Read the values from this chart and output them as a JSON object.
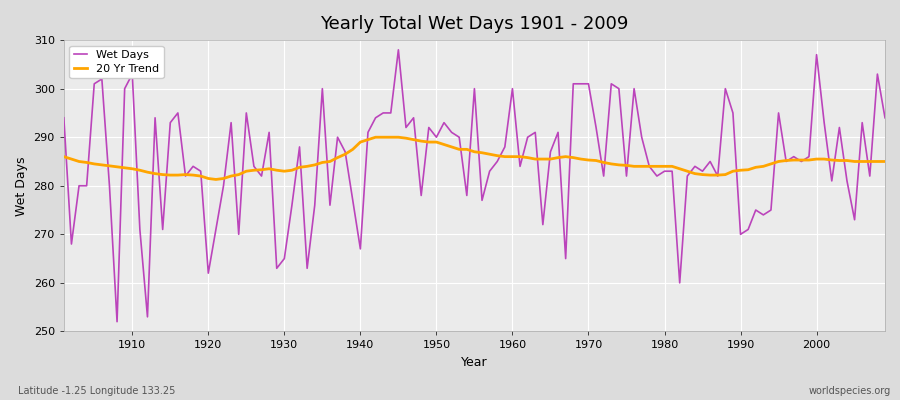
{
  "title": "Yearly Total Wet Days 1901 - 2009",
  "xlabel": "Year",
  "ylabel": "Wet Days",
  "footnote_left": "Latitude -1.25 Longitude 133.25",
  "footnote_right": "worldspecies.org",
  "ylim": [
    250,
    310
  ],
  "xlim": [
    1901,
    2009
  ],
  "yticks": [
    250,
    260,
    270,
    280,
    290,
    300,
    310
  ],
  "xticks": [
    1910,
    1920,
    1930,
    1940,
    1950,
    1960,
    1970,
    1980,
    1990,
    2000
  ],
  "wet_days_color": "#BB44BB",
  "trend_color": "#FFA500",
  "plot_bg_color": "#EBEBEB",
  "fig_bg_color": "#DCDCDC",
  "years": [
    1901,
    1902,
    1903,
    1904,
    1905,
    1906,
    1907,
    1908,
    1909,
    1910,
    1911,
    1912,
    1913,
    1914,
    1915,
    1916,
    1917,
    1918,
    1919,
    1920,
    1921,
    1922,
    1923,
    1924,
    1925,
    1926,
    1927,
    1928,
    1929,
    1930,
    1931,
    1932,
    1933,
    1934,
    1935,
    1936,
    1937,
    1938,
    1939,
    1940,
    1941,
    1942,
    1943,
    1944,
    1945,
    1946,
    1947,
    1948,
    1949,
    1950,
    1951,
    1952,
    1953,
    1954,
    1955,
    1956,
    1957,
    1958,
    1959,
    1960,
    1961,
    1962,
    1963,
    1964,
    1965,
    1966,
    1967,
    1968,
    1969,
    1970,
    1971,
    1972,
    1973,
    1974,
    1975,
    1976,
    1977,
    1978,
    1979,
    1980,
    1981,
    1982,
    1983,
    1984,
    1985,
    1986,
    1987,
    1988,
    1989,
    1990,
    1991,
    1992,
    1993,
    1994,
    1995,
    1996,
    1997,
    1998,
    1999,
    2000,
    2001,
    2002,
    2003,
    2004,
    2005,
    2006,
    2007,
    2008,
    2009
  ],
  "wet_days": [
    294,
    268,
    280,
    280,
    301,
    302,
    280,
    252,
    300,
    303,
    271,
    253,
    294,
    271,
    293,
    295,
    282,
    284,
    283,
    262,
    271,
    280,
    293,
    270,
    295,
    284,
    282,
    291,
    263,
    265,
    276,
    288,
    263,
    276,
    300,
    276,
    290,
    287,
    277,
    267,
    291,
    294,
    295,
    295,
    308,
    292,
    294,
    278,
    292,
    290,
    293,
    291,
    290,
    278,
    300,
    277,
    283,
    285,
    288,
    300,
    284,
    290,
    291,
    272,
    287,
    291,
    265,
    301,
    301,
    301,
    292,
    282,
    301,
    300,
    282,
    300,
    290,
    284,
    282,
    283,
    283,
    260,
    282,
    284,
    283,
    285,
    282,
    300,
    295,
    270,
    271,
    275,
    274,
    275,
    295,
    285,
    286,
    285,
    286,
    307,
    293,
    281,
    292,
    281,
    273,
    293,
    282,
    303,
    294
  ],
  "trend": [
    286.0,
    285.5,
    285.0,
    284.8,
    284.5,
    284.3,
    284.1,
    283.9,
    283.7,
    283.5,
    283.2,
    282.8,
    282.5,
    282.3,
    282.2,
    282.2,
    282.3,
    282.2,
    282.0,
    281.5,
    281.3,
    281.5,
    282.0,
    282.3,
    283.0,
    283.2,
    283.3,
    283.5,
    283.2,
    283.0,
    283.2,
    283.8,
    284.0,
    284.3,
    284.8,
    285.0,
    285.8,
    286.5,
    287.5,
    289.0,
    289.5,
    290.0,
    290.0,
    290.0,
    290.0,
    289.8,
    289.5,
    289.2,
    289.0,
    289.0,
    288.5,
    288.0,
    287.5,
    287.5,
    287.0,
    286.8,
    286.5,
    286.2,
    286.0,
    286.0,
    286.0,
    285.8,
    285.5,
    285.5,
    285.5,
    285.8,
    286.0,
    285.8,
    285.5,
    285.3,
    285.2,
    284.8,
    284.5,
    284.3,
    284.2,
    284.0,
    284.0,
    284.0,
    284.0,
    284.0,
    284.0,
    283.5,
    283.0,
    282.5,
    282.3,
    282.2,
    282.2,
    282.3,
    283.0,
    283.2,
    283.3,
    283.8,
    284.0,
    284.5,
    285.0,
    285.2,
    285.3,
    285.3,
    285.3,
    285.5,
    285.5,
    285.3,
    285.2,
    285.2,
    285.0,
    285.0,
    285.0,
    285.0,
    285.0
  ]
}
